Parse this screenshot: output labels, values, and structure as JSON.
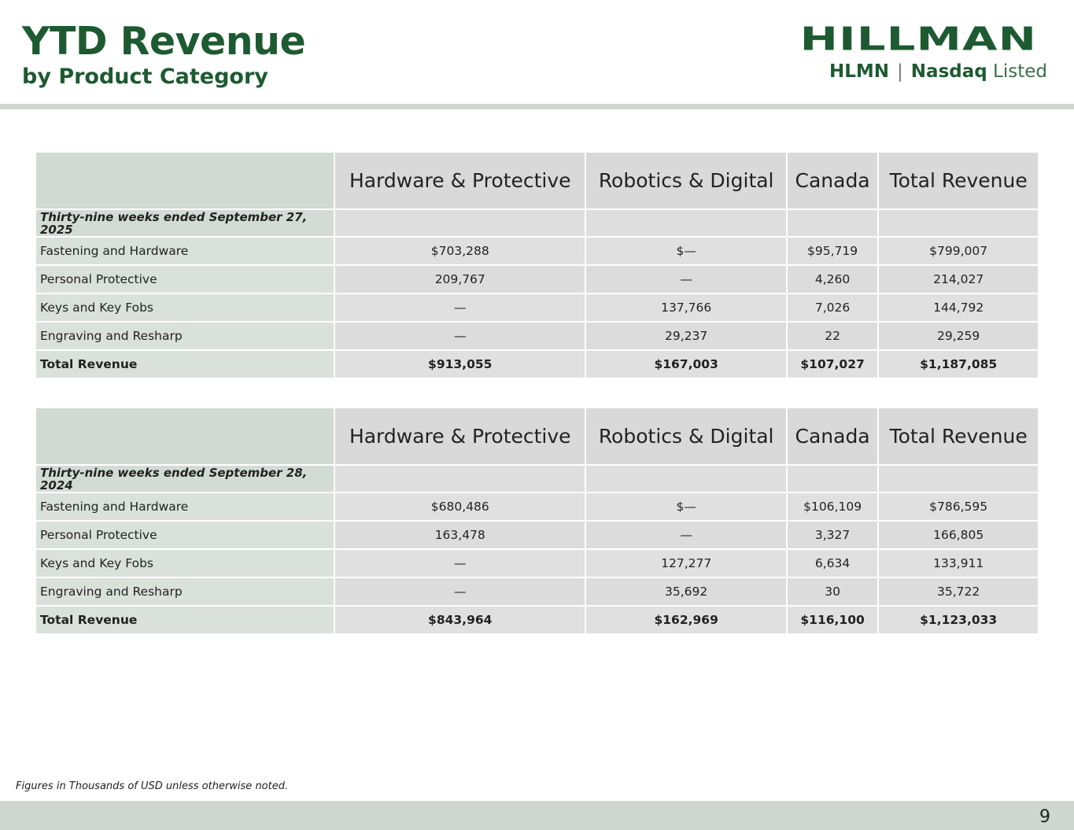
{
  "header": {
    "title": "YTD Revenue",
    "subtitle": "by Product Category"
  },
  "logo": {
    "name": "HILLMAN",
    "ticker": "HLMN",
    "separator": "|",
    "exchange": "Nasdaq",
    "listed": "Listed"
  },
  "columns": [
    "",
    "Hardware & Protective",
    "Robotics & Digital",
    "Canada",
    "Total Revenue"
  ],
  "tables": [
    {
      "period": "Thirty-nine weeks ended September 27, 2025",
      "rows": [
        [
          "Fastening and Hardware",
          "$703,288",
          "$—",
          "$95,719",
          "$799,007"
        ],
        [
          "Personal Protective",
          "209,767",
          "—",
          "4,260",
          "214,027"
        ],
        [
          "Keys and Key Fobs",
          "—",
          "137,766",
          "7,026",
          "144,792"
        ],
        [
          "Engraving and Resharp",
          "—",
          "29,237",
          "22",
          "29,259"
        ],
        [
          "Total Revenue",
          "$913,055",
          "$167,003",
          "$107,027",
          "$1,187,085"
        ]
      ]
    },
    {
      "period": "Thirty-nine weeks ended September 28, 2024",
      "rows": [
        [
          "Fastening and Hardware",
          "$680,486",
          "$—",
          "$106,109",
          "$786,595"
        ],
        [
          "Personal Protective",
          "163,478",
          "—",
          "3,327",
          "166,805"
        ],
        [
          "Keys and Key Fobs",
          "—",
          "127,277",
          "6,634",
          "133,911"
        ],
        [
          "Engraving and Resharp",
          "—",
          "35,692",
          "30",
          "35,722"
        ],
        [
          "Total Revenue",
          "$843,964",
          "$162,969",
          "$116,100",
          "$1,123,033"
        ]
      ]
    }
  ],
  "footnote": "Figures in Thousands of USD unless otherwise noted.",
  "page_number": "9",
  "colors": {
    "brand_green": "#1e5a31",
    "bar_gray": "#cfd5cf"
  }
}
